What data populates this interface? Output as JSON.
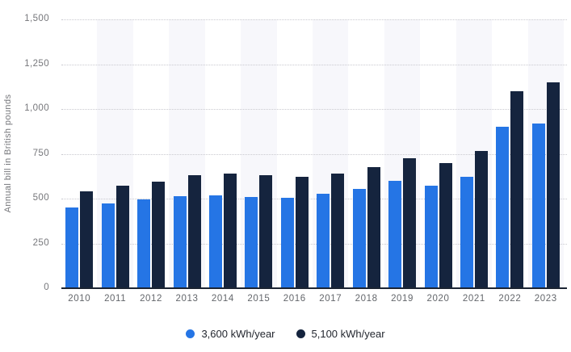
{
  "chart_data": {
    "type": "bar",
    "title": "",
    "ylabel": "Annual bill in British pounds",
    "xlabel": "",
    "ylim": [
      0,
      1500
    ],
    "grid": "horizontal-dotted",
    "legend_position": "bottom-center",
    "categories": [
      "2010",
      "2011",
      "2012",
      "2013",
      "2014",
      "2015",
      "2016",
      "2017",
      "2018",
      "2019",
      "2020",
      "2021",
      "2022",
      "2023"
    ],
    "yticks": [
      {
        "label": "1,500",
        "value": 1500
      },
      {
        "label": "1,250",
        "value": 1250
      },
      {
        "label": "1,000",
        "value": 1000
      },
      {
        "label": "750",
        "value": 750
      },
      {
        "label": "500",
        "value": 500
      },
      {
        "label": "250",
        "value": 250
      },
      {
        "label": "0",
        "value": 0
      }
    ],
    "series": [
      {
        "id": "3600kwh",
        "name": "3,600 kWh/year",
        "color": "#2575e5",
        "values": [
          450,
          475,
          495,
          515,
          520,
          510,
          505,
          525,
          555,
          600,
          570,
          620,
          900,
          920
        ]
      },
      {
        "id": "5100kwh",
        "name": "5,100 kWh/year",
        "color": "#15243e",
        "values": [
          540,
          570,
          595,
          630,
          640,
          630,
          620,
          640,
          675,
          725,
          700,
          765,
          1100,
          1150
        ]
      }
    ],
    "colors": {
      "stripe": "#f7f7fb",
      "gridline": "#c9c9cf",
      "axis_line": "#1b2433"
    }
  }
}
